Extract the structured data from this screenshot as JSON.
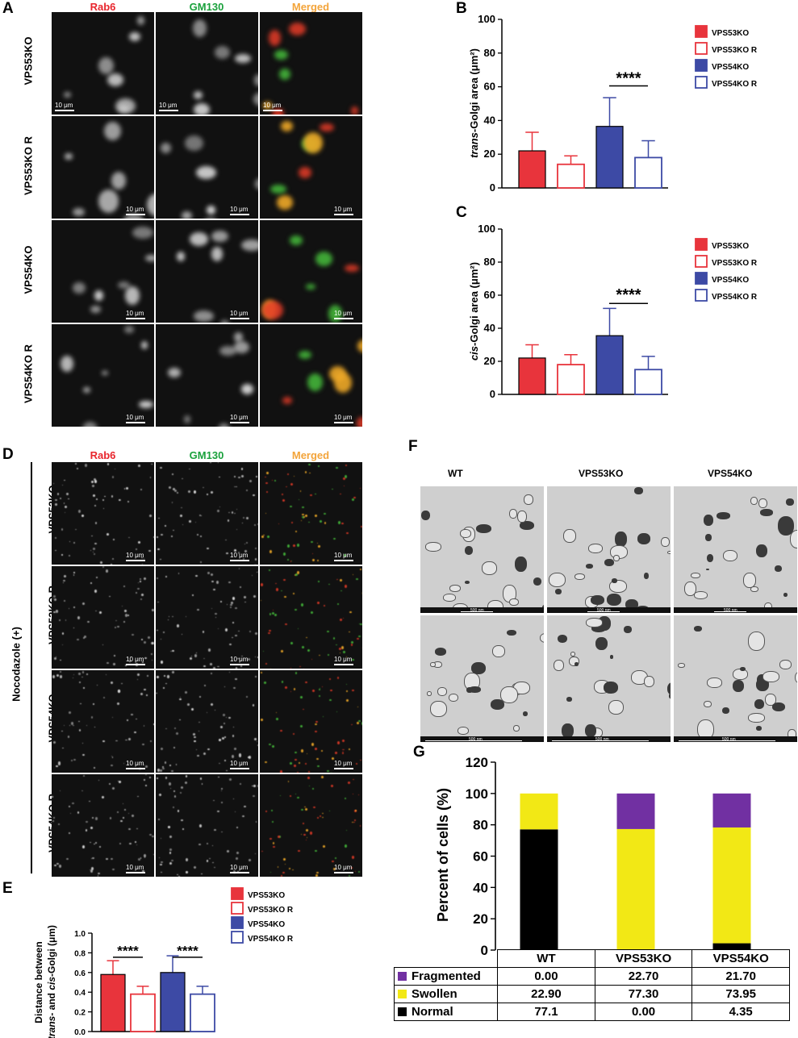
{
  "panels": {
    "A": "A",
    "B": "B",
    "C": "C",
    "D": "D",
    "E": "E",
    "F": "F",
    "G": "G"
  },
  "channels": [
    "Rab6",
    "GM130",
    "Merged"
  ],
  "channel_colors": [
    "#e8262d",
    "#1aa13c",
    "#f3a43a"
  ],
  "rows": [
    "VPS53KO",
    "VPS53KO R",
    "VPS54KO",
    "VPS54KO R"
  ],
  "scalebar": "10 μm",
  "treatment": "Nocodazole (+)",
  "em": {
    "headers": [
      "WT",
      "VPS53KO",
      "VPS54KO"
    ],
    "scalebar_top": "500 nm",
    "scalebar_bottom": "500 nm"
  },
  "colors": {
    "VPS53KO": "#e8343c",
    "VPS54KO": "#3d4aa5",
    "fragmented": "#7130a2",
    "swollen": "#f2e815",
    "normal": "#000000"
  },
  "chart_data": [
    {
      "panel": "B",
      "type": "bar",
      "ylabel_italic": "trans",
      "ylabel_rest": "-Golgi area (μm²)",
      "ylim": [
        0,
        100
      ],
      "yticks": [
        0,
        20,
        40,
        60,
        80,
        100
      ],
      "categories": [
        "VPS53KO",
        "VPS53KO R",
        "VPS54KO",
        "VPS54KO R"
      ],
      "values": [
        22,
        14,
        36.5,
        18
      ],
      "errors": [
        11,
        5,
        17,
        10
      ],
      "significance": "****",
      "legend": [
        "VPS53KO",
        "VPS53KO R",
        "VPS54KO",
        "VPS54KO R"
      ]
    },
    {
      "panel": "C",
      "type": "bar",
      "ylabel_italic": "cis",
      "ylabel_rest": "-Golgi area (μm²)",
      "ylim": [
        0,
        100
      ],
      "yticks": [
        0,
        20,
        40,
        60,
        80,
        100
      ],
      "categories": [
        "VPS53KO",
        "VPS53KO R",
        "VPS54KO",
        "VPS54KO R"
      ],
      "values": [
        22,
        18,
        35.5,
        15
      ],
      "errors": [
        8,
        6,
        16.5,
        8
      ],
      "significance": "****",
      "legend": [
        "VPS53KO",
        "VPS53KO R",
        "VPS54KO",
        "VPS54KO R"
      ]
    },
    {
      "panel": "E",
      "type": "bar",
      "ylabel_line1": "Distance between",
      "ylabel_line2_italic1": "trans",
      "ylabel_line2_mid": "- and ",
      "ylabel_line2_italic2": "cis",
      "ylabel_line2_rest": "-Golgi (μm)",
      "ylim": [
        0,
        1.0
      ],
      "yticks": [
        "0.0",
        "0.2",
        "0.4",
        "0.6",
        "0.8",
        "1.0"
      ],
      "categories": [
        "VPS53KO",
        "VPS53KO R",
        "VPS54KO",
        "VPS54KO R"
      ],
      "values": [
        0.58,
        0.38,
        0.6,
        0.38
      ],
      "errors": [
        0.14,
        0.08,
        0.17,
        0.08
      ],
      "significance": [
        "****",
        "****"
      ],
      "legend": [
        "VPS53KO",
        "VPS53KO R",
        "VPS54KO",
        "VPS54KO R"
      ]
    },
    {
      "panel": "G",
      "type": "bar",
      "stacked": true,
      "ylabel": "Percent of cells (%)",
      "ylim": [
        0,
        120
      ],
      "yticks": [
        0,
        20,
        40,
        60,
        80,
        100,
        120
      ],
      "categories": [
        "WT",
        "VPS53KO",
        "VPS54KO"
      ],
      "series": [
        {
          "name": "Normal",
          "values": [
            77.1,
            0.0,
            4.35
          ],
          "labels": [
            "77.1",
            "0.00",
            "4.35"
          ]
        },
        {
          "name": "Swollen",
          "values": [
            22.9,
            77.3,
            73.95
          ],
          "labels": [
            "22.90",
            "77.30",
            "73.95"
          ]
        },
        {
          "name": "Fragmented",
          "values": [
            0.0,
            22.7,
            21.7
          ],
          "labels": [
            "0.00",
            "22.70",
            "21.70"
          ]
        }
      ]
    }
  ]
}
